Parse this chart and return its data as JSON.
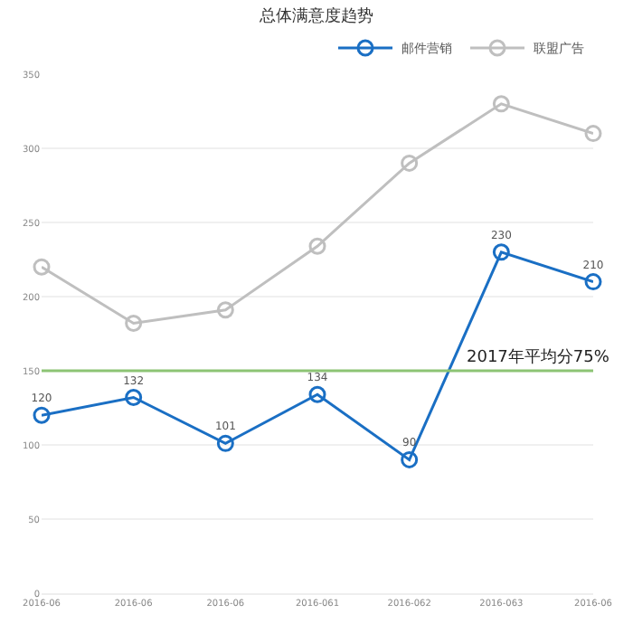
{
  "chart_data": {
    "type": "line",
    "title": "总体满意度趋势",
    "categories": [
      "2016-06",
      "2016-06",
      "2016-06",
      "2016-061",
      "2016-062",
      "2016-063",
      "2016-06"
    ],
    "series": [
      {
        "name": "邮件营销",
        "color": "#1a6fc4",
        "values": [
          120,
          132,
          101,
          134,
          90,
          230,
          210
        ],
        "value_labels": [
          "120",
          "132",
          "101",
          "134",
          "90",
          "230",
          "210"
        ]
      },
      {
        "name": "联盟广告",
        "color": "#bfbfbf",
        "values": [
          220,
          182,
          191,
          234,
          290,
          330,
          310
        ]
      }
    ],
    "ylim": [
      0,
      350
    ],
    "yticks": [
      0,
      50,
      100,
      150,
      200,
      250,
      300,
      350
    ],
    "ref_lines": [
      {
        "axis": "y",
        "value": 150,
        "label": "2017年平均分75%",
        "color": "#8cc474"
      }
    ],
    "grid": "y",
    "legend": "top right",
    "marker": "circle"
  }
}
